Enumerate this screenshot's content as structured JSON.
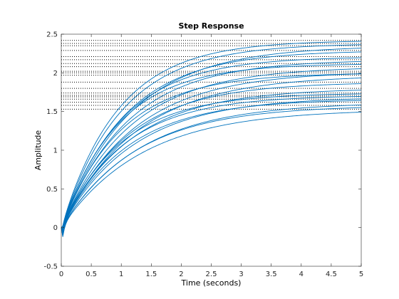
{
  "chart_data": {
    "type": "line",
    "title": "Step Response",
    "xlabel": "Time (seconds)",
    "ylabel": "Amplitude",
    "xlim": [
      0,
      5
    ],
    "ylim": [
      -0.5,
      2.5
    ],
    "xticks": [
      "0",
      "0.5",
      "1",
      "1.5",
      "2",
      "2.5",
      "3",
      "3.5",
      "4",
      "4.5",
      "5"
    ],
    "yticks": [
      "-0.5",
      "0",
      "0.5",
      "1",
      "1.5",
      "2",
      "2.5"
    ],
    "grid": false,
    "legend": "none",
    "line_color": "#0072BD",
    "steady_state_line_style": "dotted black",
    "series": [
      {
        "final_value": 2.42,
        "time_constant": 0.95,
        "initial_dip": -0.02
      },
      {
        "final_value": 2.38,
        "time_constant": 1.0,
        "initial_dip": -0.04
      },
      {
        "final_value": 2.35,
        "time_constant": 1.15,
        "initial_dip": -0.03
      },
      {
        "final_value": 2.29,
        "time_constant": 1.05,
        "initial_dip": -0.05
      },
      {
        "final_value": 2.21,
        "time_constant": 1.0,
        "initial_dip": -0.03
      },
      {
        "final_value": 2.17,
        "time_constant": 1.1,
        "initial_dip": -0.06
      },
      {
        "final_value": 2.12,
        "time_constant": 0.95,
        "initial_dip": -0.02
      },
      {
        "final_value": 2.08,
        "time_constant": 1.15,
        "initial_dip": -0.04
      },
      {
        "final_value": 2.02,
        "time_constant": 1.2,
        "initial_dip": -0.05
      },
      {
        "final_value": 2.0,
        "time_constant": 1.0,
        "initial_dip": -0.03
      },
      {
        "final_value": 1.97,
        "time_constant": 1.25,
        "initial_dip": -0.07
      },
      {
        "final_value": 1.88,
        "time_constant": 1.1,
        "initial_dip": -0.04
      },
      {
        "final_value": 1.8,
        "time_constant": 1.15,
        "initial_dip": -0.05
      },
      {
        "final_value": 1.74,
        "time_constant": 1.0,
        "initial_dip": -0.03
      },
      {
        "final_value": 1.71,
        "time_constant": 1.05,
        "initial_dip": -0.06
      },
      {
        "final_value": 1.69,
        "time_constant": 1.2,
        "initial_dip": -0.04
      },
      {
        "final_value": 1.66,
        "time_constant": 1.1,
        "initial_dip": -0.08
      },
      {
        "final_value": 1.62,
        "time_constant": 1.3,
        "initial_dip": -0.05
      },
      {
        "final_value": 1.58,
        "time_constant": 1.25,
        "initial_dip": -0.07
      },
      {
        "final_value": 1.53,
        "time_constant": 1.35,
        "initial_dip": -0.06
      }
    ]
  }
}
